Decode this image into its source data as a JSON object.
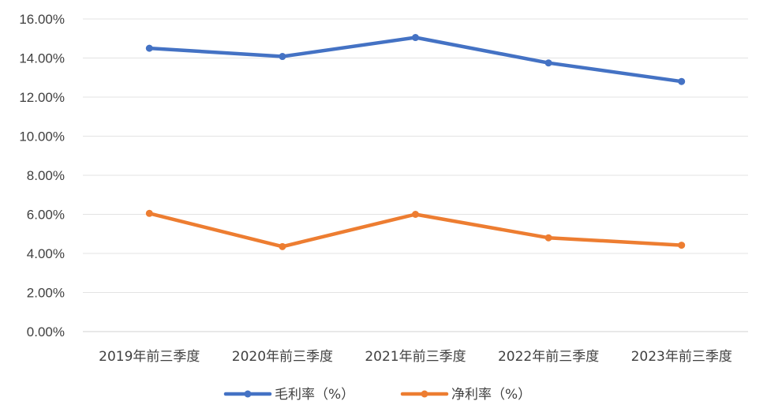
{
  "chart_data": {
    "type": "line",
    "title": "",
    "xlabel": "",
    "ylabel": "",
    "categories": [
      "2019年前三季度",
      "2020年前三季度",
      "2021年前三季度",
      "2022年前三季度",
      "2023年前三季度"
    ],
    "y_ticks": [
      "0.00%",
      "2.00%",
      "4.00%",
      "6.00%",
      "8.00%",
      "10.00%",
      "12.00%",
      "14.00%",
      "16.00%"
    ],
    "ylim": [
      0,
      16
    ],
    "y_unit": "%",
    "grid": true,
    "legend_position": "bottom",
    "series": [
      {
        "name": "毛利率（%）",
        "color": "#4472C4",
        "values": [
          14.5,
          14.08,
          15.05,
          13.75,
          12.8
        ]
      },
      {
        "name": "净利率（%）",
        "color": "#ED7D31",
        "values": [
          6.05,
          4.35,
          6.0,
          4.8,
          4.42
        ]
      }
    ]
  }
}
